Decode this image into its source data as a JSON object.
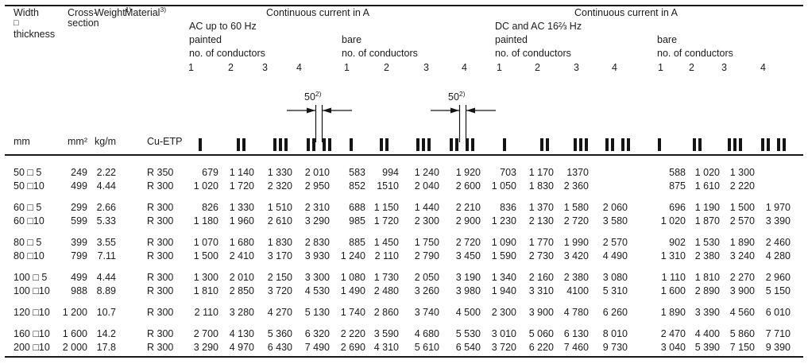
{
  "header": {
    "width_label_line1": "Width",
    "width_label_line2": "□",
    "width_label_line3": "thickness",
    "cross_label_line1": "Cross-",
    "cross_label_line2": "section",
    "weight_label": "Weight",
    "weight_sup": "1)",
    "material_label": "Material",
    "material_sup": "3)",
    "ac": {
      "title": "Continuous current in A",
      "subtitle": "AC up to 60 Hz",
      "painted_label": "painted",
      "bare_label": "bare",
      "conductors_label": "no. of conductors",
      "conductor_numbers": [
        "1",
        "2",
        "3",
        "4"
      ]
    },
    "dc": {
      "title": "Continuous current in A",
      "subtitle": "DC and AC 16⅔ Hz",
      "painted_label": "painted",
      "bare_label": "bare",
      "conductors_label": "no. of conductors",
      "conductor_numbers": [
        "1",
        "2",
        "3",
        "4"
      ]
    },
    "annotation": {
      "value": "50",
      "sup": "2)"
    },
    "conductor_icons": [
      "one-bar",
      "two-bars",
      "three-bars",
      "two-pairs-of-bars-with-gap"
    ]
  },
  "units": {
    "width": "mm",
    "cross_section": "mm²",
    "weight": "kg/m",
    "material": "Cu-ETP"
  },
  "rows": {
    "groups": [
      [
        {
          "size": "50 □ 5",
          "cross_section": "249",
          "weight": "2.22",
          "material": "R 350",
          "ac_painted": [
            "679",
            "1 140",
            "1 330",
            "2 010"
          ],
          "ac_bare": [
            "583",
            "994",
            "1 240",
            "1 920"
          ],
          "dc_painted": [
            "703",
            "1 170",
            "1370",
            ""
          ],
          "dc_bare": [
            "588",
            "1 020",
            "1 300",
            ""
          ]
        },
        {
          "size": "50 □10",
          "cross_section": "499",
          "weight": "4.44",
          "material": "R 300",
          "ac_painted": [
            "1 020",
            "1 720",
            "2 320",
            "2 950"
          ],
          "ac_bare": [
            "852",
            "1510",
            "2 040",
            "2 600"
          ],
          "dc_painted": [
            "1 050",
            "1 830",
            "2 360",
            ""
          ],
          "dc_bare": [
            "875",
            "1 610",
            "2 220",
            ""
          ]
        }
      ],
      [
        {
          "size": "60 □ 5",
          "cross_section": "299",
          "weight": "2.66",
          "material": "R 300",
          "ac_painted": [
            "826",
            "1 330",
            "1 510",
            "2 310"
          ],
          "ac_bare": [
            "688",
            "1 150",
            "1 440",
            "2 210"
          ],
          "dc_painted": [
            "836",
            "1 370",
            "1 580",
            "2 060"
          ],
          "dc_bare": [
            "696",
            "1 190",
            "1 500",
            "1 970"
          ]
        },
        {
          "size": "60 □10",
          "cross_section": "599",
          "weight": "5.33",
          "material": "R 300",
          "ac_painted": [
            "1 180",
            "1 960",
            "2 610",
            "3 290"
          ],
          "ac_bare": [
            "985",
            "1 720",
            "2 300",
            "2 900"
          ],
          "dc_painted": [
            "1 230",
            "2 130",
            "2 720",
            "3 580"
          ],
          "dc_bare": [
            "1 020",
            "1 870",
            "2 570",
            "3 390"
          ]
        }
      ],
      [
        {
          "size": "80 □ 5",
          "cross_section": "399",
          "weight": "3.55",
          "material": "R 300",
          "ac_painted": [
            "1 070",
            "1 680",
            "1 830",
            "2 830"
          ],
          "ac_bare": [
            "885",
            "1 450",
            "1 750",
            "2 720"
          ],
          "dc_painted": [
            "1 090",
            "1 770",
            "1 990",
            "2 570"
          ],
          "dc_bare": [
            "902",
            "1 530",
            "1 890",
            "2 460"
          ]
        },
        {
          "size": "80 □10",
          "cross_section": "799",
          "weight": "7.11",
          "material": "R 300",
          "ac_painted": [
            "1 500",
            "2 410",
            "3 170",
            "3 930"
          ],
          "ac_bare": [
            "1 240",
            "2 110",
            "2 790",
            "3 450"
          ],
          "dc_painted": [
            "1 590",
            "2 730",
            "3 420",
            "4 490"
          ],
          "dc_bare": [
            "1 310",
            "2 380",
            "3 240",
            "4 280"
          ]
        }
      ],
      [
        {
          "size": "100 □ 5",
          "cross_section": "499",
          "weight": "4.44",
          "material": "R 300",
          "ac_painted": [
            "1 300",
            "2 010",
            "2 150",
            "3 300"
          ],
          "ac_bare": [
            "1 080",
            "1 730",
            "2 050",
            "3 190"
          ],
          "dc_painted": [
            "1 340",
            "2 160",
            "2 380",
            "3 080"
          ],
          "dc_bare": [
            "1 110",
            "1 810",
            "2 270",
            "2 960"
          ]
        },
        {
          "size": "100 □10",
          "cross_section": "988",
          "weight": "8.89",
          "material": "R 300",
          "ac_painted": [
            "1 810",
            "2 850",
            "3 720",
            "4 530"
          ],
          "ac_bare": [
            "1 490",
            "2 480",
            "3 260",
            "3 980"
          ],
          "dc_painted": [
            "1 940",
            "3 310",
            "4100",
            "5 310"
          ],
          "dc_bare": [
            "1 600",
            "2 890",
            "3 900",
            "5 150"
          ]
        }
      ],
      [
        {
          "size": "120 □10",
          "cross_section": "1 200",
          "weight": "10.7",
          "material": "R 300",
          "ac_painted": [
            "2 110",
            "3 280",
            "4 270",
            "5 130"
          ],
          "ac_bare": [
            "1 740",
            "2 860",
            "3 740",
            "4 500"
          ],
          "dc_painted": [
            "2 300",
            "3 900",
            "4 780",
            "6 260"
          ],
          "dc_bare": [
            "1 890",
            "3 390",
            "4 560",
            "6 010"
          ]
        }
      ],
      [
        {
          "size": "160 □10",
          "cross_section": "1 600",
          "weight": "14.2",
          "material": "R 300",
          "ac_painted": [
            "2 700",
            "4 130",
            "5 360",
            "6 320"
          ],
          "ac_bare": [
            "2 220",
            "3 590",
            "4 680",
            "5 530"
          ],
          "dc_painted": [
            "3 010",
            "5 060",
            "6 130",
            "8 010"
          ],
          "dc_bare": [
            "2 470",
            "4 400",
            "5 860",
            "7 710"
          ]
        },
        {
          "size": "200 □10",
          "cross_section": "2 000",
          "weight": "17.8",
          "material": "R 300",
          "ac_painted": [
            "3 290",
            "4 970",
            "6 430",
            "7 490"
          ],
          "ac_bare": [
            "2 690",
            "4 310",
            "5 610",
            "6 540"
          ],
          "dc_painted": [
            "3 720",
            "6 220",
            "7 460",
            "9 730"
          ],
          "dc_bare": [
            "3 040",
            "5 390",
            "7 150",
            "9 390"
          ]
        }
      ]
    ]
  }
}
